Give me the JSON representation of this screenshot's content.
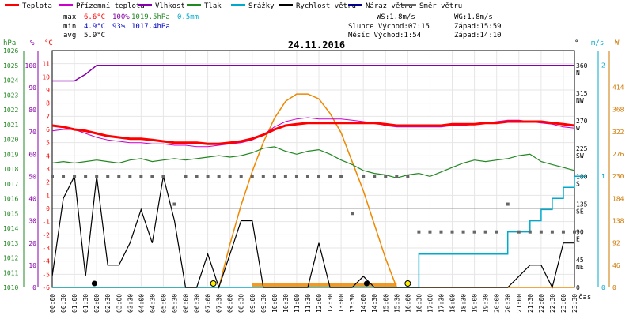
{
  "legend": [
    {
      "label": "Teplota",
      "color": "#ff0000"
    },
    {
      "label": "Přízemní teplota",
      "color": "#cc00cc"
    },
    {
      "label": "Vlhkost",
      "color": "#8800aa"
    },
    {
      "label": "Tlak",
      "color": "#228822"
    },
    {
      "label": "Srážky",
      "color": "#00aacc"
    },
    {
      "label": "Rychlost větru",
      "color": "#000000"
    },
    {
      "label": "Náraz větru",
      "color": "#000088"
    },
    {
      "label": "Směr větru",
      "color": "#666666"
    }
  ],
  "stats": {
    "max_label": "max",
    "max_temp": "6.6°C",
    "max_hum": "100%",
    "max_press": "1019.5hPa",
    "max_rain": "0.5mm",
    "min_label": "min",
    "min_temp": "4.9°C",
    "min_hum": "93%",
    "min_press": "1017.4hPa",
    "avg_label": "avg",
    "avg_temp": "5.9°C"
  },
  "sun": {
    "ws": "WS:1.8m/s",
    "wg": "WG:1.8m/s",
    "sun_rise": "Slunce Východ:07:15",
    "sun_set": "Západ:15:59",
    "moon_rise": "Měsíc  Východ:1:54",
    "moon_set": "Západ:14:10"
  },
  "chart_data": {
    "type": "line",
    "title": "24.11.2016",
    "xlabel": "čas",
    "x": [
      "00:00",
      "00:30",
      "01:00",
      "01:30",
      "02:00",
      "02:30",
      "03:00",
      "03:30",
      "04:00",
      "04:30",
      "05:00",
      "05:30",
      "06:00",
      "06:30",
      "07:00",
      "07:30",
      "08:00",
      "08:30",
      "09:00",
      "09:30",
      "10:00",
      "10:30",
      "11:00",
      "11:30",
      "12:00",
      "12:30",
      "13:00",
      "13:30",
      "14:00",
      "14:30",
      "15:00",
      "15:30",
      "16:00",
      "16:30",
      "17:00",
      "17:30",
      "18:00",
      "18:30",
      "19:00",
      "19:30",
      "20:00",
      "20:30",
      "21:00",
      "21:30",
      "22:00",
      "22:30",
      "23:00",
      "23:30"
    ],
    "axes": {
      "hpa": {
        "label": "hPa",
        "ticks": [
          1010,
          1011,
          1012,
          1013,
          1014,
          1015,
          1016,
          1017,
          1018,
          1019,
          1020,
          1021,
          1022,
          1023,
          1024,
          1025,
          1026
        ],
        "range": [
          1010,
          1026
        ]
      },
      "percent": {
        "label": "%",
        "ticks": [
          0,
          10,
          20,
          30,
          40,
          50,
          60,
          70,
          80,
          90,
          100
        ],
        "range": [
          0,
          106.7
        ]
      },
      "celsius": {
        "label": "°C",
        "ticks": [
          -6,
          -5,
          -4,
          -3,
          -2,
          -1,
          0,
          1,
          2,
          3,
          4,
          5,
          6,
          7,
          8,
          9,
          10,
          11
        ],
        "range": [
          -6,
          12
        ]
      },
      "degrees": {
        "label": "°",
        "ticks": [
          0,
          45,
          90,
          135,
          180,
          225,
          270,
          315,
          360
        ],
        "range": [
          0,
          384
        ]
      },
      "compass": [
        "NE",
        "E",
        "SE",
        "S",
        "SW",
        "W",
        "NW",
        "N"
      ],
      "ms": {
        "label": "m/s",
        "ticks": [
          0,
          1,
          2
        ],
        "range": [
          0,
          2.13
        ]
      },
      "watts": {
        "label": "W",
        "ticks": [
          0,
          46,
          92,
          138,
          184,
          230,
          276,
          322,
          368,
          414
        ],
        "range": [
          0,
          490
        ]
      }
    },
    "series": [
      {
        "name": "Teplota",
        "unit": "°C",
        "values": [
          6.3,
          6.2,
          6.0,
          5.9,
          5.7,
          5.5,
          5.4,
          5.3,
          5.3,
          5.2,
          5.1,
          5.0,
          5.0,
          5.0,
          4.9,
          4.9,
          5.0,
          5.1,
          5.3,
          5.6,
          6.0,
          6.3,
          6.4,
          6.5,
          6.5,
          6.5,
          6.5,
          6.5,
          6.5,
          6.5,
          6.4,
          6.3,
          6.3,
          6.3,
          6.3,
          6.3,
          6.4,
          6.4,
          6.4,
          6.5,
          6.5,
          6.6,
          6.6,
          6.6,
          6.6,
          6.5,
          6.4,
          6.3
        ]
      },
      {
        "name": "Přízemní teplota",
        "unit": "°C",
        "values": [
          5.9,
          6.0,
          6.0,
          5.7,
          5.4,
          5.2,
          5.1,
          5.0,
          5.0,
          4.9,
          4.9,
          4.8,
          4.8,
          4.7,
          4.7,
          4.8,
          4.9,
          5.0,
          5.2,
          5.6,
          6.2,
          6.6,
          6.8,
          6.9,
          6.8,
          6.8,
          6.8,
          6.7,
          6.6,
          6.5,
          6.3,
          6.2,
          6.2,
          6.2,
          6.2,
          6.2,
          6.3,
          6.3,
          6.4,
          6.5,
          6.6,
          6.7,
          6.7,
          6.6,
          6.5,
          6.4,
          6.2,
          6.1
        ]
      },
      {
        "name": "Vlhkost",
        "unit": "%",
        "values": [
          93,
          93,
          93,
          96,
          100,
          100,
          100,
          100,
          100,
          100,
          100,
          100,
          100,
          100,
          100,
          100,
          100,
          100,
          100,
          100,
          100,
          100,
          100,
          100,
          100,
          100,
          100,
          100,
          100,
          100,
          100,
          100,
          100,
          100,
          100,
          100,
          100,
          100,
          100,
          100,
          100,
          100,
          100,
          100,
          100,
          100,
          100,
          100
        ]
      },
      {
        "name": "Tlak",
        "unit": "hPa",
        "values": [
          1018.4,
          1018.5,
          1018.4,
          1018.5,
          1018.6,
          1018.5,
          1018.4,
          1018.6,
          1018.7,
          1018.5,
          1018.6,
          1018.7,
          1018.6,
          1018.7,
          1018.8,
          1018.9,
          1018.8,
          1018.9,
          1019.1,
          1019.4,
          1019.5,
          1019.2,
          1019.0,
          1019.2,
          1019.3,
          1019.0,
          1018.6,
          1018.3,
          1017.9,
          1017.7,
          1017.6,
          1017.4,
          1017.6,
          1017.7,
          1017.5,
          1017.8,
          1018.1,
          1018.4,
          1018.6,
          1018.5,
          1018.6,
          1018.7,
          1018.9,
          1019.0,
          1018.5,
          1018.3,
          1018.1,
          1017.9
        ]
      },
      {
        "name": "Srážky",
        "unit": "mm",
        "values": [
          0,
          0,
          0,
          0,
          0,
          0,
          0,
          0,
          0,
          0,
          0,
          0,
          0,
          0,
          0,
          0,
          0,
          0,
          0,
          0,
          0,
          0,
          0,
          0,
          0,
          0,
          0,
          0,
          0,
          0,
          0,
          0,
          0,
          0.15,
          0.15,
          0.15,
          0.15,
          0.15,
          0.15,
          0.15,
          0.15,
          0.25,
          0.25,
          0.3,
          0.35,
          0.4,
          0.45,
          0.5
        ]
      },
      {
        "name": "Rychlost větru",
        "unit": "m/s",
        "values": [
          0.1,
          0.8,
          1.0,
          0.1,
          1.0,
          0.2,
          0.2,
          0.4,
          0.7,
          0.4,
          1.0,
          0.6,
          0.0,
          0.0,
          0.3,
          0.0,
          0.3,
          0.6,
          0.6,
          0.0,
          0.0,
          0.0,
          0.0,
          0.0,
          0.4,
          0.0,
          0.0,
          0.0,
          0.1,
          0.0,
          0.0,
          0.0,
          0.0,
          0.0,
          0.0,
          0.0,
          0.0,
          0.0,
          0.0,
          0.0,
          0.0,
          0.0,
          0.1,
          0.2,
          0.2,
          0.0,
          0.4,
          0.4
        ]
      },
      {
        "name": "Směr větru",
        "unit": "°",
        "values": [
          180,
          180,
          180,
          180,
          180,
          180,
          180,
          180,
          180,
          180,
          180,
          135,
          180,
          180,
          180,
          180,
          180,
          180,
          180,
          180,
          180,
          180,
          180,
          180,
          180,
          180,
          180,
          120,
          180,
          180,
          180,
          180,
          180,
          90,
          90,
          90,
          90,
          90,
          90,
          90,
          90,
          135,
          90,
          90,
          90,
          90,
          90,
          90
        ]
      },
      {
        "name": "Sluneční záření",
        "unit": "W",
        "values": [
          0,
          0,
          0,
          0,
          0,
          0,
          0,
          0,
          0,
          0,
          0,
          0,
          0,
          0,
          0,
          0,
          90,
          170,
          240,
          300,
          350,
          385,
          400,
          400,
          390,
          360,
          320,
          260,
          200,
          130,
          60,
          0,
          0,
          0,
          0,
          0,
          0,
          0,
          0,
          0,
          0,
          0,
          0,
          0,
          0,
          0,
          0,
          0
        ]
      }
    ]
  }
}
